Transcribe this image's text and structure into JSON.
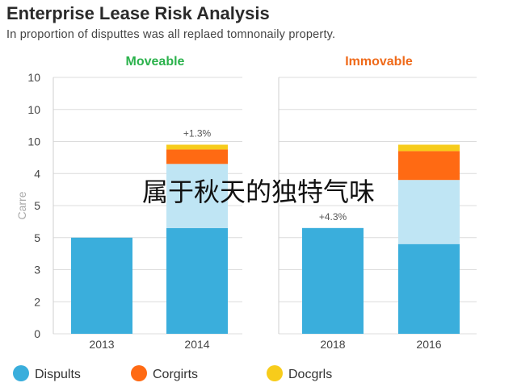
{
  "title": "Enterprise Lease Risk Analysis",
  "subtitle": "In proportion of disputtes was all replaed tomnonaily property.",
  "overlay_text": "属于秋天的独特气味",
  "colors": {
    "disputes": "#3aaedc",
    "disputes_light": "#bfe5f4",
    "corgirts": "#ff6a13",
    "docgrls": "#f7cc1b",
    "moveable": "#2bb24c",
    "immovable": "#ef6a1a"
  },
  "chart_data": {
    "type": "bar",
    "stacked": true,
    "ylabel": "Carre",
    "tick_labels": [
      "10",
      "10",
      "10",
      "4",
      "5",
      "5",
      "3",
      "2",
      "0"
    ],
    "grid": true,
    "legend_position": "bottom",
    "panels": [
      {
        "title": "Moveable",
        "categories": [
          "2013",
          "2014"
        ],
        "annotations": [
          "",
          "+1.3%"
        ]
      },
      {
        "title": "Immovable",
        "categories": [
          "2018",
          "2016"
        ],
        "annotations": [
          "+4.3%",
          ""
        ]
      }
    ],
    "series": [
      {
        "name": "Dispults",
        "values": [
          [
            3.0,
            3.3
          ],
          [
            3.3,
            2.8
          ]
        ]
      },
      {
        "name": "Dispults (shaded)",
        "values": [
          [
            0,
            2.0
          ],
          [
            0,
            2.0
          ]
        ]
      },
      {
        "name": "Corgirts",
        "values": [
          [
            0,
            0.45
          ],
          [
            0,
            0.9
          ]
        ]
      },
      {
        "name": "Docgrls",
        "values": [
          [
            0,
            0.15
          ],
          [
            0,
            0.2
          ]
        ]
      }
    ],
    "legend": [
      "Dispults",
      "Corgirts",
      "Docgrls"
    ]
  }
}
